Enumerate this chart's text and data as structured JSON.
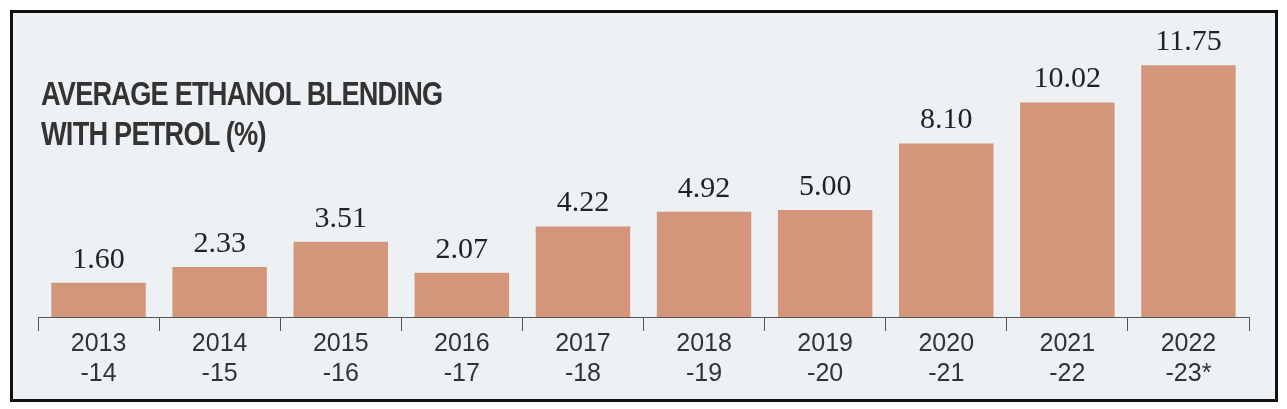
{
  "chart_data": {
    "type": "bar",
    "title": "AVERAGE ETHANOL BLENDING\nWITH PETROL (%)",
    "categories": [
      "2013\n-14",
      "2014\n-15",
      "2015\n-16",
      "2016\n-17",
      "2017\n-18",
      "2018\n-19",
      "2019\n-20",
      "2020\n-21",
      "2021\n-22",
      "2022\n-23*"
    ],
    "values": [
      1.6,
      2.33,
      3.51,
      2.07,
      4.22,
      4.92,
      5.0,
      8.1,
      10.02,
      11.75
    ],
    "value_labels": [
      "1.60",
      "2.33",
      "3.51",
      "2.07",
      "4.22",
      "4.92",
      "5.00",
      "8.10",
      "10.02",
      "11.75"
    ],
    "color": "#d4967a",
    "grid": false,
    "legend": false,
    "tick_labels": "x"
  }
}
